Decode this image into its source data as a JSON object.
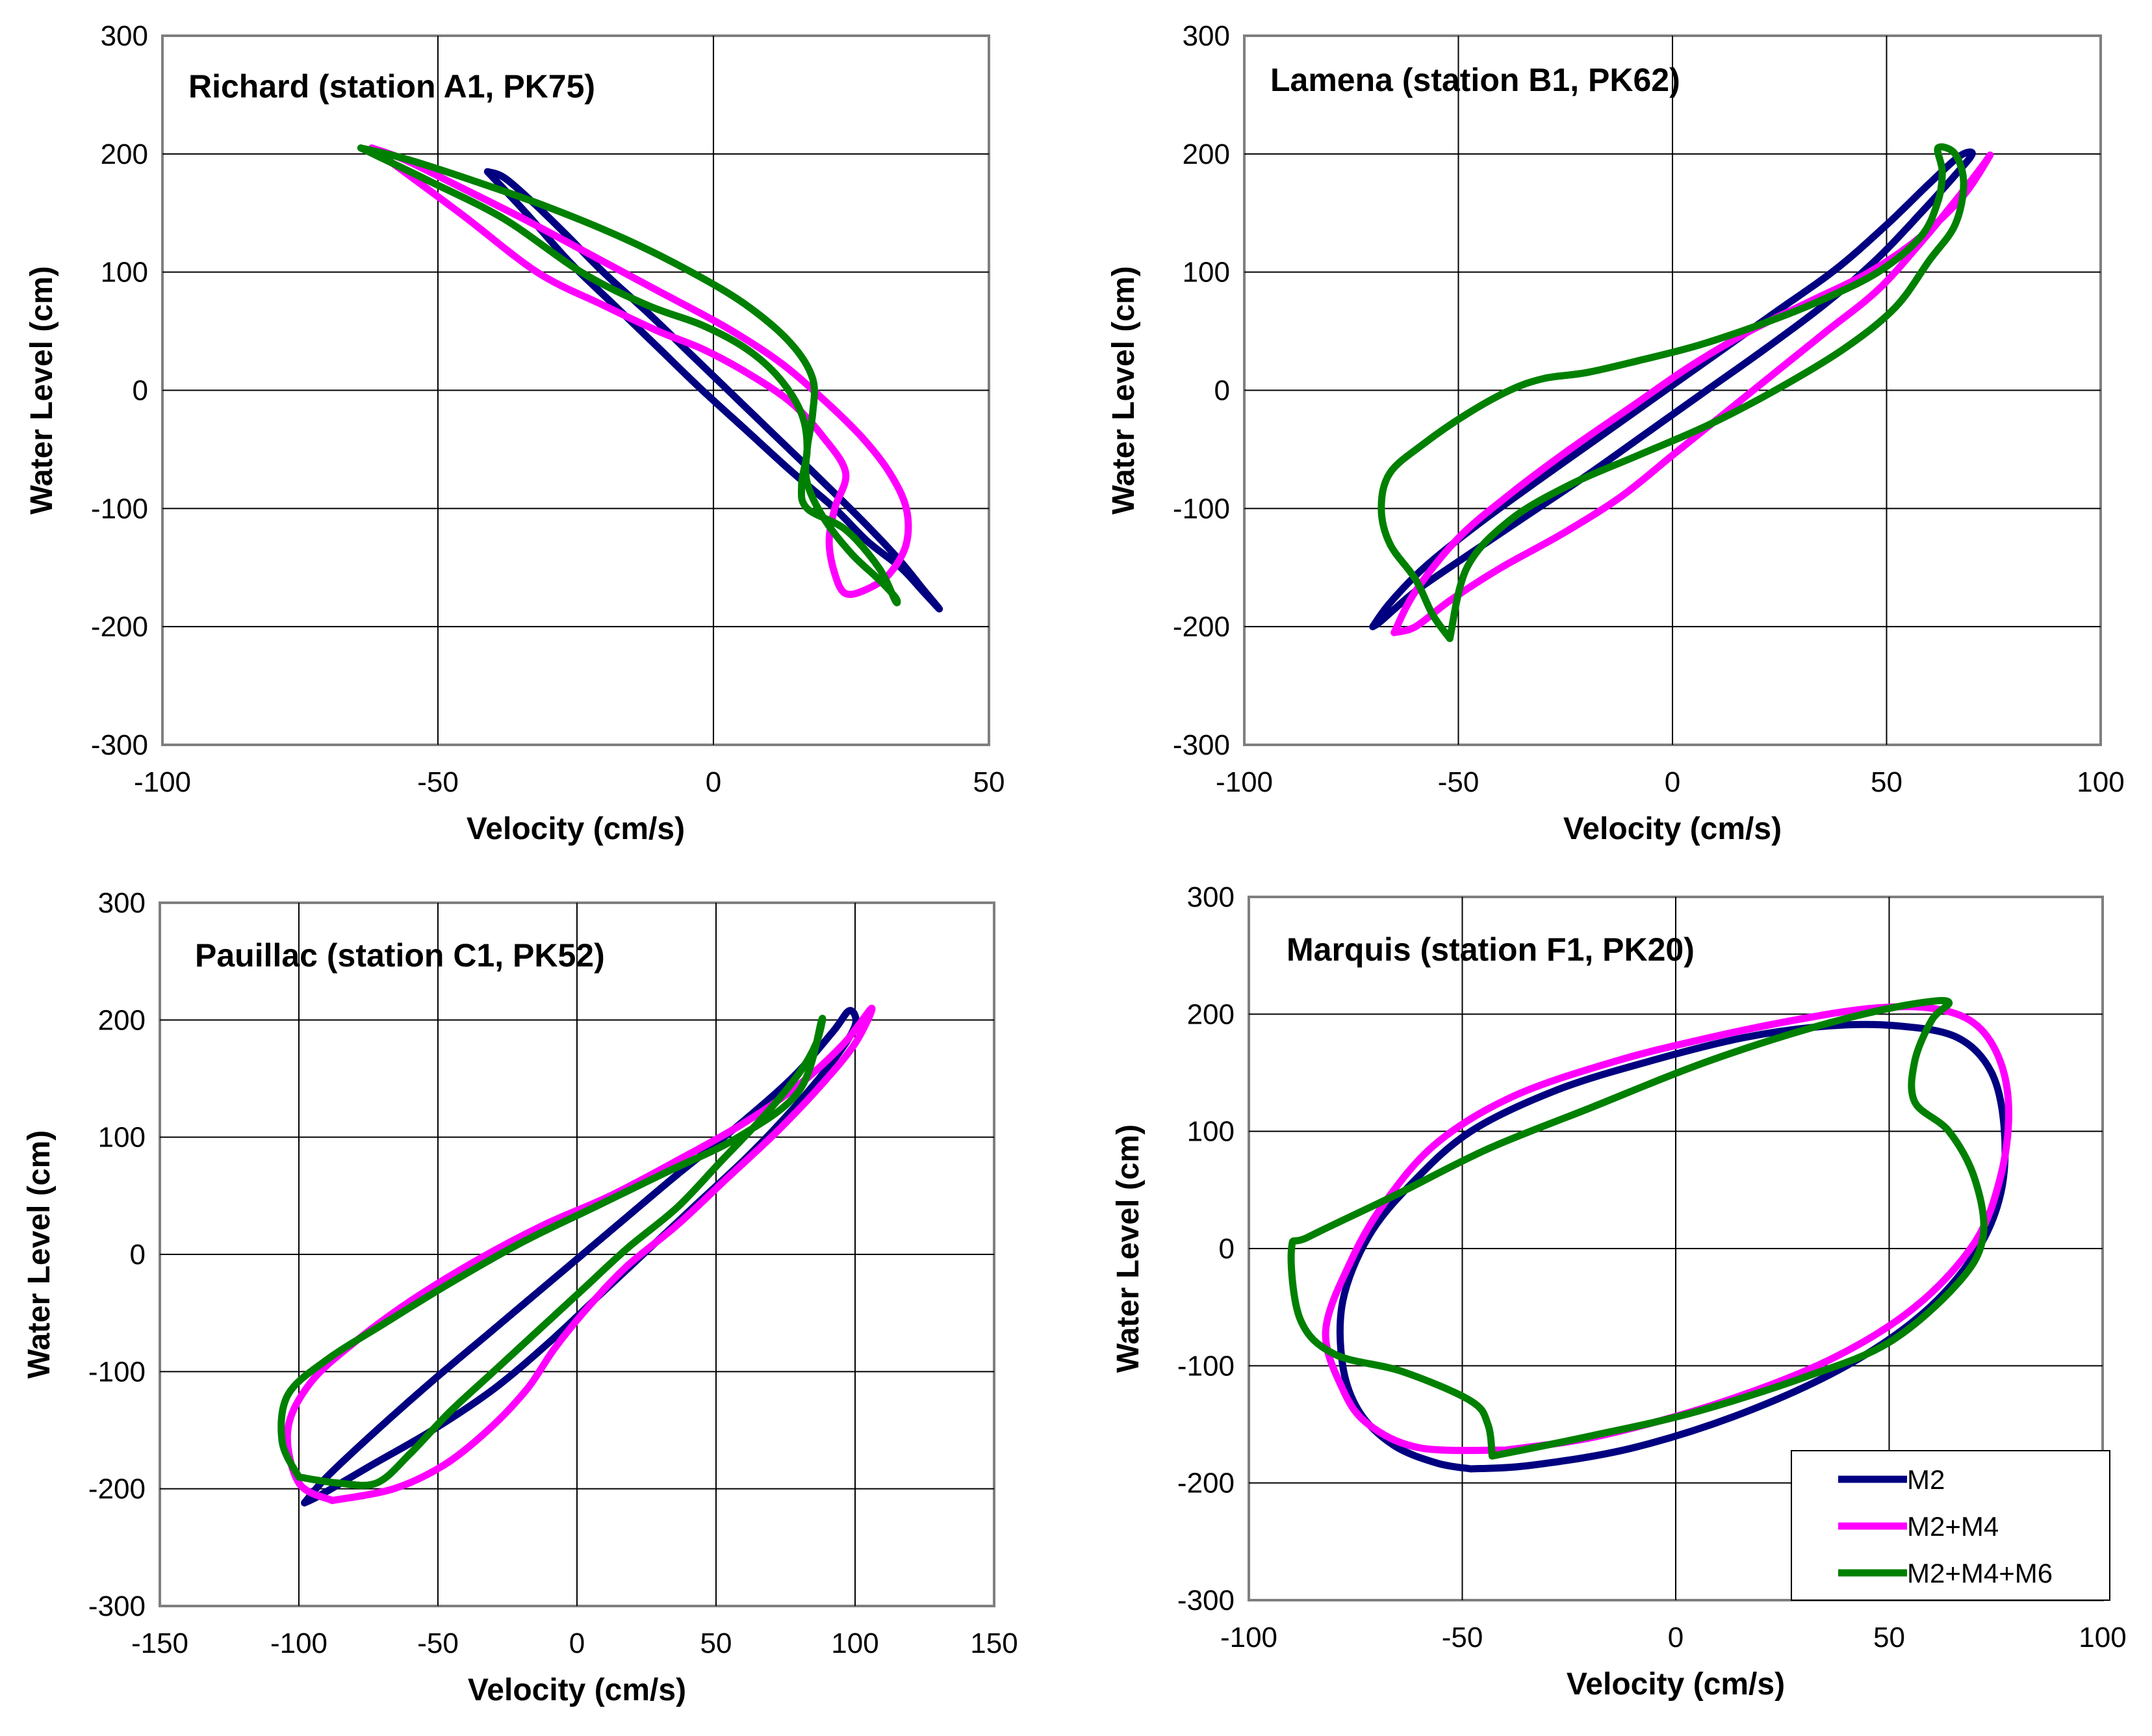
{
  "series_styles": [
    {
      "name": "M2",
      "color": "#000080"
    },
    {
      "name": "M2+M4",
      "color": "#FF00FF"
    },
    {
      "name": "M2+M4+M6",
      "color": "#008000"
    }
  ],
  "legend": {
    "location": "lower-right of Marquis panel",
    "entries": [
      "M2",
      "M2+M4",
      "M2+M4+M6"
    ]
  },
  "chart_data": [
    {
      "type": "line",
      "title": "Richard (station A1, PK75)",
      "xlabel": "Velocity (cm/s)",
      "ylabel": "Water Level (cm)",
      "xlim": [
        -100,
        50
      ],
      "ylim": [
        -300,
        300
      ],
      "xticks": [
        -100,
        -50,
        0,
        50
      ],
      "yticks": [
        -300,
        -200,
        -100,
        0,
        100,
        200,
        300
      ],
      "grid": true,
      "series": [
        {
          "name": "M2",
          "x": [
            -41,
            -38,
            -33,
            -27,
            -20,
            -12,
            -4,
            4,
            12,
            20,
            28,
            34,
            38,
            41,
            38,
            34,
            28,
            22,
            14,
            6,
            -2,
            -10,
            -18,
            -26,
            -34,
            -41
          ],
          "y": [
            185,
            180,
            160,
            133,
            100,
            66,
            30,
            -6,
            -42,
            -78,
            -115,
            -145,
            -168,
            -185,
            -170,
            -150,
            -128,
            -100,
            -68,
            -34,
            0,
            36,
            72,
            108,
            150,
            185
          ]
        },
        {
          "name": "M2+M4",
          "x": [
            -62,
            -56,
            -46,
            -34,
            -22,
            -10,
            2,
            12,
            20,
            27,
            32,
            35,
            35,
            32,
            28,
            24,
            22,
            21,
            22,
            24,
            20,
            14,
            6,
            -2,
            -10,
            -20,
            -32,
            -46,
            -62
          ],
          "y": [
            205,
            195,
            172,
            144,
            114,
            84,
            54,
            24,
            -8,
            -40,
            -70,
            -100,
            -130,
            -155,
            -168,
            -172,
            -155,
            -128,
            -100,
            -70,
            -40,
            -10,
            15,
            35,
            50,
            72,
            100,
            150,
            205
          ]
        },
        {
          "name": "M2+M4+M6",
          "x": [
            -64,
            -56,
            -44,
            -30,
            -16,
            -4,
            6,
            14,
            18,
            18,
            17,
            17,
            20,
            25,
            30,
            33,
            33,
            30,
            24,
            17,
            16,
            17,
            16,
            12,
            6,
            -2,
            -12,
            -24,
            -38,
            -52,
            -64
          ],
          "y": [
            205,
            196,
            178,
            155,
            128,
            100,
            72,
            40,
            10,
            -20,
            -50,
            -78,
            -108,
            -138,
            -160,
            -175,
            -178,
            -150,
            -118,
            -100,
            -80,
            -50,
            -20,
            10,
            35,
            55,
            72,
            100,
            145,
            178,
            205
          ]
        }
      ]
    },
    {
      "type": "line",
      "title": "Lamena (station B1, PK62)",
      "xlabel": "Velocity (cm/s)",
      "ylabel": "Water Level (cm)",
      "xlim": [
        -100,
        100
      ],
      "ylim": [
        -300,
        300
      ],
      "xticks": [
        -100,
        -50,
        0,
        50,
        100
      ],
      "yticks": [
        -300,
        -200,
        -100,
        0,
        100,
        200,
        300
      ],
      "grid": true,
      "series": [
        {
          "name": "M2",
          "x": [
            -70,
            -66,
            -58,
            -46,
            -32,
            -18,
            -4,
            10,
            24,
            38,
            50,
            60,
            67,
            70,
            66,
            58,
            48,
            36,
            22,
            8,
            -6,
            -20,
            -34,
            -48,
            -60,
            -68,
            -70
          ],
          "y": [
            -200,
            -180,
            -150,
            -115,
            -78,
            -42,
            -6,
            30,
            66,
            102,
            140,
            175,
            198,
            200,
            182,
            150,
            112,
            74,
            36,
            0,
            -36,
            -72,
            -106,
            -140,
            -170,
            -195,
            -200
          ]
        },
        {
          "name": "M2+M4",
          "x": [
            -65,
            -60,
            -50,
            -38,
            -24,
            -10,
            4,
            18,
            32,
            46,
            58,
            68,
            74,
            72,
            66,
            58,
            48,
            36,
            24,
            12,
            0,
            -12,
            -26,
            -40,
            -52,
            -60,
            -65
          ],
          "y": [
            -205,
            -170,
            -125,
            -88,
            -50,
            -15,
            20,
            50,
            75,
            100,
            130,
            165,
            198,
            188,
            160,
            125,
            85,
            50,
            15,
            -20,
            -55,
            -90,
            -122,
            -150,
            -178,
            -200,
            -205
          ]
        },
        {
          "name": "M2+M4+M6",
          "x": [
            -52,
            -56,
            -60,
            -66,
            -68,
            -66,
            -58,
            -48,
            -38,
            -30,
            -20,
            -8,
            6,
            20,
            34,
            48,
            58,
            62,
            63,
            62,
            66,
            68,
            66,
            60,
            52,
            40,
            24,
            8,
            -8,
            -24,
            -38,
            -48,
            -52
          ],
          "y": [
            -210,
            -190,
            -160,
            -130,
            -100,
            -70,
            -45,
            -20,
            0,
            10,
            15,
            25,
            38,
            55,
            75,
            100,
            130,
            160,
            185,
            205,
            200,
            175,
            140,
            110,
            70,
            35,
            0,
            -30,
            -55,
            -80,
            -110,
            -150,
            -210
          ]
        }
      ]
    },
    {
      "type": "line",
      "title": "Pauillac (station C1, PK52)",
      "xlabel": "Velocity (cm/s)",
      "ylabel": "Water Level (cm)",
      "xlim": [
        -150,
        150
      ],
      "ylim": [
        -300,
        300
      ],
      "xticks": [
        -150,
        -100,
        -50,
        0,
        50,
        100,
        150
      ],
      "yticks": [
        -300,
        -200,
        -100,
        0,
        100,
        200,
        300
      ],
      "grid": true,
      "series": [
        {
          "name": "M2",
          "x": [
            -98,
            -90,
            -72,
            -52,
            -30,
            -8,
            14,
            36,
            58,
            78,
            92,
            98,
            100,
            92,
            78,
            62,
            44,
            26,
            8,
            -10,
            -30,
            -52,
            -74,
            -92,
            -98
          ],
          "y": [
            -212,
            -190,
            -150,
            -108,
            -64,
            -20,
            24,
            68,
            110,
            152,
            190,
            208,
            195,
            165,
            125,
            85,
            45,
            5,
            -35,
            -75,
            -115,
            -150,
            -180,
            -205,
            -212
          ]
        },
        {
          "name": "M2+M4",
          "x": [
            -88,
            -100,
            -104,
            -96,
            -80,
            -60,
            -36,
            -12,
            12,
            36,
            60,
            80,
            96,
            106,
            100,
            88,
            72,
            54,
            36,
            18,
            4,
            -8,
            -18,
            -32,
            -48,
            -66,
            -88
          ],
          "y": [
            -210,
            -195,
            -150,
            -110,
            -75,
            -40,
            -5,
            25,
            50,
            80,
            112,
            145,
            180,
            210,
            180,
            145,
            105,
            65,
            25,
            -10,
            -45,
            -80,
            -115,
            -150,
            -180,
            -200,
            -210
          ]
        },
        {
          "name": "M2+M4+M6",
          "x": [
            -100,
            -106,
            -104,
            -90,
            -70,
            -46,
            -20,
            6,
            32,
            58,
            80,
            88,
            86,
            80,
            68,
            52,
            36,
            18,
            2,
            -14,
            -30,
            -46,
            -60,
            -72,
            -86,
            -100
          ],
          "y": [
            -190,
            -160,
            -120,
            -90,
            -60,
            -25,
            10,
            40,
            70,
            100,
            140,
            200,
            180,
            155,
            120,
            80,
            40,
            5,
            -30,
            -65,
            -100,
            -135,
            -170,
            -195,
            -195,
            -190
          ]
        }
      ]
    },
    {
      "type": "line",
      "title": "Marquis (station F1, PK20)",
      "xlabel": "Velocity (cm/s)",
      "ylabel": "Water Level (cm)",
      "xlim": [
        -100,
        100
      ],
      "ylim": [
        -300,
        300
      ],
      "xticks": [
        -100,
        -50,
        0,
        50,
        100
      ],
      "yticks": [
        -300,
        -200,
        -100,
        0,
        100,
        200,
        300
      ],
      "grid": true,
      "series": [
        {
          "name": "M2",
          "x": [
            -48,
            -34,
            -10,
            16,
            40,
            58,
            70,
            76,
            77,
            74,
            66,
            52,
            36,
            16,
            -6,
            -28,
            -48,
            -62,
            -72,
            -78,
            -78,
            -74,
            -66,
            -56,
            -48
          ],
          "y": [
            -188,
            -185,
            -170,
            -140,
            -100,
            -55,
            -5,
            45,
            100,
            150,
            180,
            190,
            190,
            180,
            160,
            135,
            100,
            55,
            10,
            -45,
            -100,
            -140,
            -168,
            -183,
            -188
          ]
        },
        {
          "name": "M2+M4",
          "x": [
            -40,
            -18,
            10,
            36,
            56,
            70,
            76,
            78,
            76,
            70,
            60,
            46,
            28,
            8,
            -14,
            -38,
            -56,
            -68,
            -76,
            -82,
            -78,
            -72,
            -60,
            -40
          ],
          "y": [
            -172,
            -160,
            -132,
            -95,
            -50,
            5,
            60,
            115,
            160,
            192,
            205,
            205,
            195,
            180,
            160,
            130,
            90,
            40,
            -10,
            -70,
            -120,
            -150,
            -170,
            -172
          ]
        },
        {
          "name": "M2+M4+M6",
          "x": [
            -43,
            -20,
            4,
            30,
            50,
            66,
            72,
            70,
            64,
            56,
            56,
            60,
            64,
            58,
            44,
            26,
            4,
            -20,
            -44,
            -66,
            -86,
            -90,
            -88,
            -80,
            -64,
            -48,
            -44,
            -43
          ],
          "y": [
            -177,
            -160,
            -140,
            -110,
            -80,
            -30,
            10,
            60,
            100,
            125,
            160,
            195,
            210,
            210,
            200,
            182,
            155,
            120,
            85,
            45,
            10,
            0,
            -60,
            -90,
            -105,
            -130,
            -150,
            -177
          ]
        }
      ]
    }
  ]
}
